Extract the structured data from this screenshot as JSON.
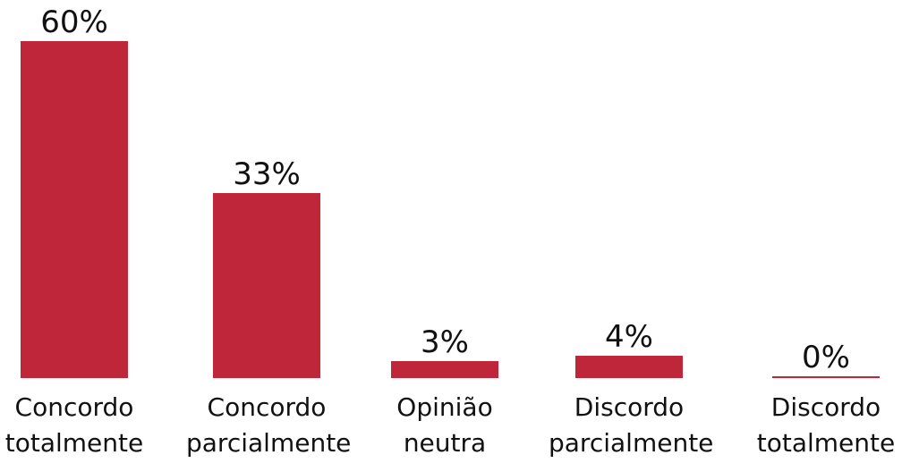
{
  "chart_data": {
    "type": "bar",
    "categories": [
      "Concordo totalmente",
      "Concordo parcialmente",
      "Opinião neutra",
      "Discordo parcialmente",
      "Discordo totalmente"
    ],
    "values": [
      60,
      33,
      3,
      4,
      0
    ],
    "value_labels": [
      "60%",
      "33%",
      "3%",
      "4%",
      "0%"
    ],
    "color": "#c0263a"
  }
}
